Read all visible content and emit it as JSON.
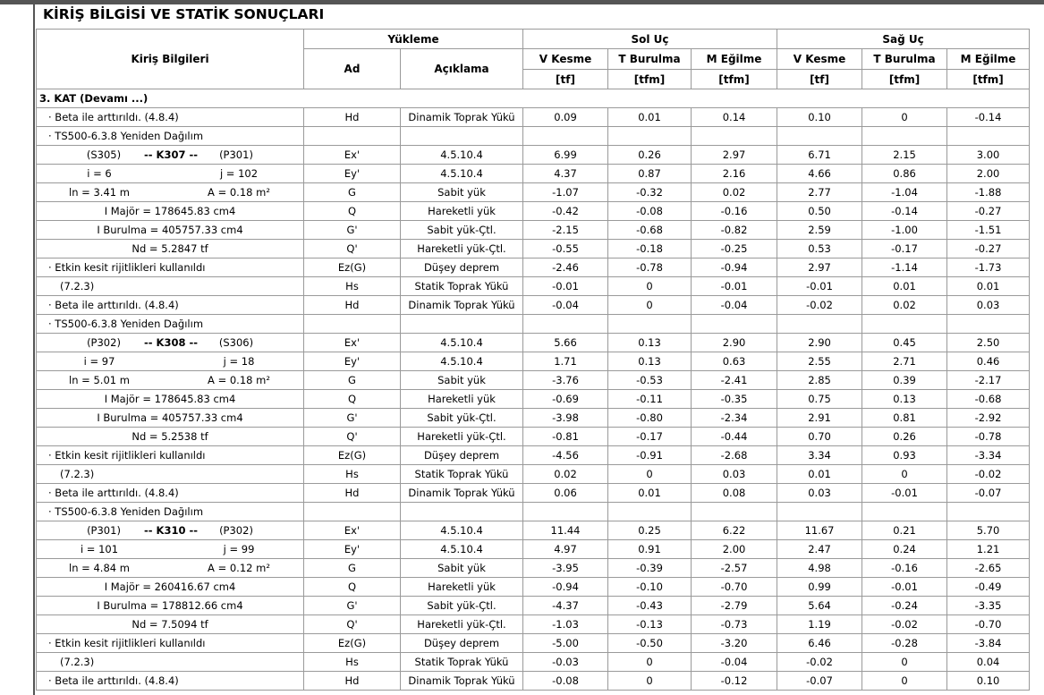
{
  "title": "KİRİŞ BİLGİSİ VE STATİK SONUÇLARI",
  "header": {
    "info": "Kiriş Bilgileri",
    "loading": "Yükleme",
    "ad": "Ad",
    "desc": "Açıklama",
    "left": "Sol Uç",
    "right": "Sağ Uç",
    "cols": [
      "V Kesme",
      "T Burulma",
      "M Eğilme"
    ],
    "units": [
      "[tf]",
      "[tfm]",
      "[tfm]"
    ]
  },
  "section": "3. KAT  (Devamı ...)",
  "pre_rows": [
    {
      "note": "· Beta ile arttırıldı. (4.8.4)",
      "load": [
        "Hd",
        "Dinamik Toprak Yükü",
        "0.09",
        "0.01",
        "0.14",
        "0.10",
        "0",
        "-0.14"
      ]
    },
    {
      "note": "· TS500-6.3.8 Yeniden Dağılım"
    }
  ],
  "beams": [
    {
      "title": [
        "(S305)",
        "-- K307 --",
        "(P301)"
      ],
      "pairs": [
        [
          "i = 6",
          "j = 102"
        ],
        [
          "ln = 3.41 m",
          "A = 0.18 m²"
        ]
      ],
      "props": [
        "I Majör = 178645.83 cm4",
        "I Burulma = 405757.33 cm4",
        "Nd = 5.2847 tf"
      ],
      "notes": [
        "· Etkin kesit rijitlikleri kullanıldı",
        "(7.2.3)",
        "· Beta ile arttırıldı. (4.8.4)",
        "· TS500-6.3.8 Yeniden Dağılım"
      ],
      "loads": [
        [
          "Ex'",
          "4.5.10.4",
          "6.99",
          "0.26",
          "2.97",
          "6.71",
          "2.15",
          "3.00"
        ],
        [
          "Ey'",
          "4.5.10.4",
          "4.37",
          "0.87",
          "2.16",
          "4.66",
          "0.86",
          "2.00"
        ],
        [
          "G",
          "Sabit yük",
          "-1.07",
          "-0.32",
          "0.02",
          "2.77",
          "-1.04",
          "-1.88"
        ],
        [
          "Q",
          "Hareketli yük",
          "-0.42",
          "-0.08",
          "-0.16",
          "0.50",
          "-0.14",
          "-0.27"
        ],
        [
          "G'",
          "Sabit yük-Çtl.",
          "-2.15",
          "-0.68",
          "-0.82",
          "2.59",
          "-1.00",
          "-1.51"
        ],
        [
          "Q'",
          "Hareketli yük-Çtl.",
          "-0.55",
          "-0.18",
          "-0.25",
          "0.53",
          "-0.17",
          "-0.27"
        ],
        [
          "Ez(G)",
          "Düşey deprem",
          "-2.46",
          "-0.78",
          "-0.94",
          "2.97",
          "-1.14",
          "-1.73"
        ],
        [
          "Hs",
          "Statik Toprak Yükü",
          "-0.01",
          "0",
          "-0.01",
          "-0.01",
          "0.01",
          "0.01"
        ],
        [
          "Hd",
          "Dinamik Toprak Yükü",
          "-0.04",
          "0",
          "-0.04",
          "-0.02",
          "0.02",
          "0.03"
        ]
      ]
    },
    {
      "title": [
        "(P302)",
        "-- K308 --",
        "(S306)"
      ],
      "pairs": [
        [
          "i = 97",
          "j = 18"
        ],
        [
          "ln = 5.01 m",
          "A = 0.18 m²"
        ]
      ],
      "props": [
        "I Majör = 178645.83 cm4",
        "I Burulma = 405757.33 cm4",
        "Nd = 5.2538 tf"
      ],
      "notes": [
        "· Etkin kesit rijitlikleri kullanıldı",
        "(7.2.3)",
        "· Beta ile arttırıldı. (4.8.4)",
        "· TS500-6.3.8 Yeniden Dağılım"
      ],
      "loads": [
        [
          "Ex'",
          "4.5.10.4",
          "5.66",
          "0.13",
          "2.90",
          "2.90",
          "0.45",
          "2.50"
        ],
        [
          "Ey'",
          "4.5.10.4",
          "1.71",
          "0.13",
          "0.63",
          "2.55",
          "2.71",
          "0.46"
        ],
        [
          "G",
          "Sabit yük",
          "-3.76",
          "-0.53",
          "-2.41",
          "2.85",
          "0.39",
          "-2.17"
        ],
        [
          "Q",
          "Hareketli yük",
          "-0.69",
          "-0.11",
          "-0.35",
          "0.75",
          "0.13",
          "-0.68"
        ],
        [
          "G'",
          "Sabit yük-Çtl.",
          "-3.98",
          "-0.80",
          "-2.34",
          "2.91",
          "0.81",
          "-2.92"
        ],
        [
          "Q'",
          "Hareketli yük-Çtl.",
          "-0.81",
          "-0.17",
          "-0.44",
          "0.70",
          "0.26",
          "-0.78"
        ],
        [
          "Ez(G)",
          "Düşey deprem",
          "-4.56",
          "-0.91",
          "-2.68",
          "3.34",
          "0.93",
          "-3.34"
        ],
        [
          "Hs",
          "Statik Toprak Yükü",
          "0.02",
          "0",
          "0.03",
          "0.01",
          "0",
          "-0.02"
        ],
        [
          "Hd",
          "Dinamik Toprak Yükü",
          "0.06",
          "0.01",
          "0.08",
          "0.03",
          "-0.01",
          "-0.07"
        ]
      ]
    },
    {
      "title": [
        "(P301)",
        "-- K310 --",
        "(P302)"
      ],
      "pairs": [
        [
          "i = 101",
          "j = 99"
        ],
        [
          "ln = 4.84 m",
          "A = 0.12 m²"
        ]
      ],
      "props": [
        "I Majör = 260416.67 cm4",
        "I Burulma = 178812.66 cm4",
        "Nd = 7.5094 tf"
      ],
      "notes": [
        "· Etkin kesit rijitlikleri kullanıldı",
        "(7.2.3)",
        "· Beta ile arttırıldı. (4.8.4)"
      ],
      "loads": [
        [
          "Ex'",
          "4.5.10.4",
          "11.44",
          "0.25",
          "6.22",
          "11.67",
          "0.21",
          "5.70"
        ],
        [
          "Ey'",
          "4.5.10.4",
          "4.97",
          "0.91",
          "2.00",
          "2.47",
          "0.24",
          "1.21"
        ],
        [
          "G",
          "Sabit yük",
          "-3.95",
          "-0.39",
          "-2.57",
          "4.98",
          "-0.16",
          "-2.65"
        ],
        [
          "Q",
          "Hareketli yük",
          "-0.94",
          "-0.10",
          "-0.70",
          "0.99",
          "-0.01",
          "-0.49"
        ],
        [
          "G'",
          "Sabit yük-Çtl.",
          "-4.37",
          "-0.43",
          "-2.79",
          "5.64",
          "-0.24",
          "-3.35"
        ],
        [
          "Q'",
          "Hareketli yük-Çtl.",
          "-1.03",
          "-0.13",
          "-0.73",
          "1.19",
          "-0.02",
          "-0.70"
        ],
        [
          "Ez(G)",
          "Düşey deprem",
          "-5.00",
          "-0.50",
          "-3.20",
          "6.46",
          "-0.28",
          "-3.84"
        ],
        [
          "Hs",
          "Statik Toprak Yükü",
          "-0.03",
          "0",
          "-0.04",
          "-0.02",
          "0",
          "0.04"
        ],
        [
          "Hd",
          "Dinamik Toprak Yükü",
          "-0.08",
          "0",
          "-0.12",
          "-0.07",
          "0",
          "0.10"
        ]
      ]
    }
  ]
}
